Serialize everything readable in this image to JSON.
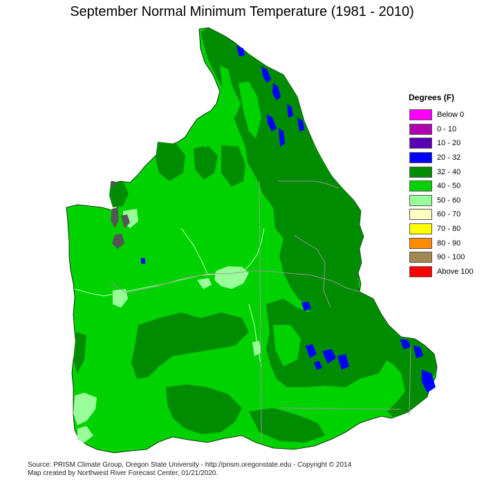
{
  "title": "September Normal Minimum Temperature (1981 - 2010)",
  "legend": {
    "title": "Degrees (F)",
    "items": [
      {
        "label": "Below 0",
        "color": "#ff00ff"
      },
      {
        "label": "0 - 10",
        "color": "#b000b0"
      },
      {
        "label": "10 - 20",
        "color": "#5a00b4"
      },
      {
        "label": "20 - 32",
        "color": "#0000ff"
      },
      {
        "label": "32 - 40",
        "color": "#008c00"
      },
      {
        "label": "40 - 50",
        "color": "#00d200"
      },
      {
        "label": "50 - 60",
        "color": "#99ff99"
      },
      {
        "label": "60 - 70",
        "color": "#ffffc0"
      },
      {
        "label": "70 - 80",
        "color": "#ffff00"
      },
      {
        "label": "80 - 90",
        "color": "#ff8c00"
      },
      {
        "label": "90 - 100",
        "color": "#a08850"
      },
      {
        "label": "Above 100",
        "color": "#ff0000"
      }
    ]
  },
  "credits": {
    "line1": "Source: PRISM Climate Group, Oregon State University - http://prism.oregonstate.edu - Copyright © 2014",
    "line2": "Map created by Northwest River Forecast Center, 01/21/2020."
  }
}
